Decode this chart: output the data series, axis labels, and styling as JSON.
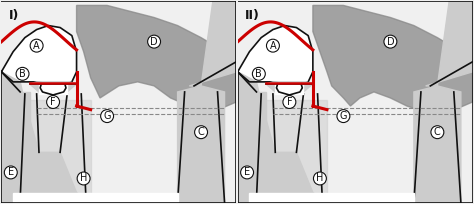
{
  "bg_color": "#f0f0f0",
  "panel_bg": "#ffffff",
  "gray_dark": "#888888",
  "gray_mid": "#aaaaaa",
  "gray_light": "#cccccc",
  "red_color": "#cc0000",
  "black": "#111111",
  "label_color": "#333333",
  "panel1_title": "I)",
  "panel2_title": "II)",
  "labels": [
    "A",
    "B",
    "C",
    "D",
    "E",
    "F",
    "G",
    "H"
  ]
}
